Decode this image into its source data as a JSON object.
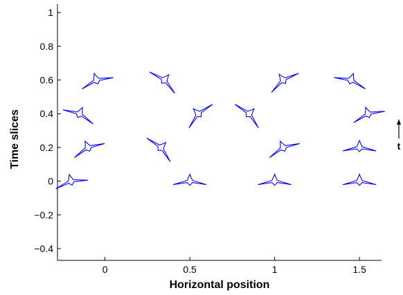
{
  "chart_data": {
    "type": "scatter",
    "title": "",
    "xlabel": "Horizontal position",
    "ylabel": "Time slices",
    "xlim": [
      -0.28,
      1.63
    ],
    "ylim": [
      -0.47,
      1.05
    ],
    "xticks": [
      0,
      0.5,
      1,
      1.5
    ],
    "xtick_labels": [
      "0",
      "0.5",
      "1",
      "1.5"
    ],
    "yticks": [
      -0.4,
      -0.2,
      0,
      0.2,
      0.4,
      0.6,
      0.8,
      1
    ],
    "ytick_labels": [
      "−0.4",
      "−0.2",
      "0",
      "0.2",
      "0.4",
      "0.6",
      "0.8",
      "1"
    ],
    "grid": false,
    "legend": false,
    "marker": "bird-glyph",
    "marker_color": "#0000ff",
    "points": [
      {
        "x": -0.2,
        "y": 0.0,
        "angle": -15
      },
      {
        "x": 0.5,
        "y": 0.0,
        "angle": 0
      },
      {
        "x": 1.0,
        "y": 0.0,
        "angle": 0
      },
      {
        "x": 1.5,
        "y": 0.0,
        "angle": 0
      },
      {
        "x": -0.1,
        "y": 0.2,
        "angle": -25
      },
      {
        "x": 0.33,
        "y": 0.2,
        "angle": 45
      },
      {
        "x": 1.05,
        "y": 0.2,
        "angle": -25
      },
      {
        "x": 1.5,
        "y": 0.2,
        "angle": 0
      },
      {
        "x": -0.15,
        "y": 0.4,
        "angle": 25
      },
      {
        "x": 0.55,
        "y": 0.4,
        "angle": -45
      },
      {
        "x": 0.85,
        "y": 0.4,
        "angle": 45
      },
      {
        "x": 1.55,
        "y": 0.4,
        "angle": -20
      },
      {
        "x": -0.05,
        "y": 0.6,
        "angle": -20
      },
      {
        "x": 0.35,
        "y": 0.6,
        "angle": 40
      },
      {
        "x": 1.05,
        "y": 0.6,
        "angle": -35
      },
      {
        "x": 1.45,
        "y": 0.6,
        "angle": 20
      }
    ],
    "annotation": {
      "label": "t",
      "arrow": "up"
    }
  }
}
